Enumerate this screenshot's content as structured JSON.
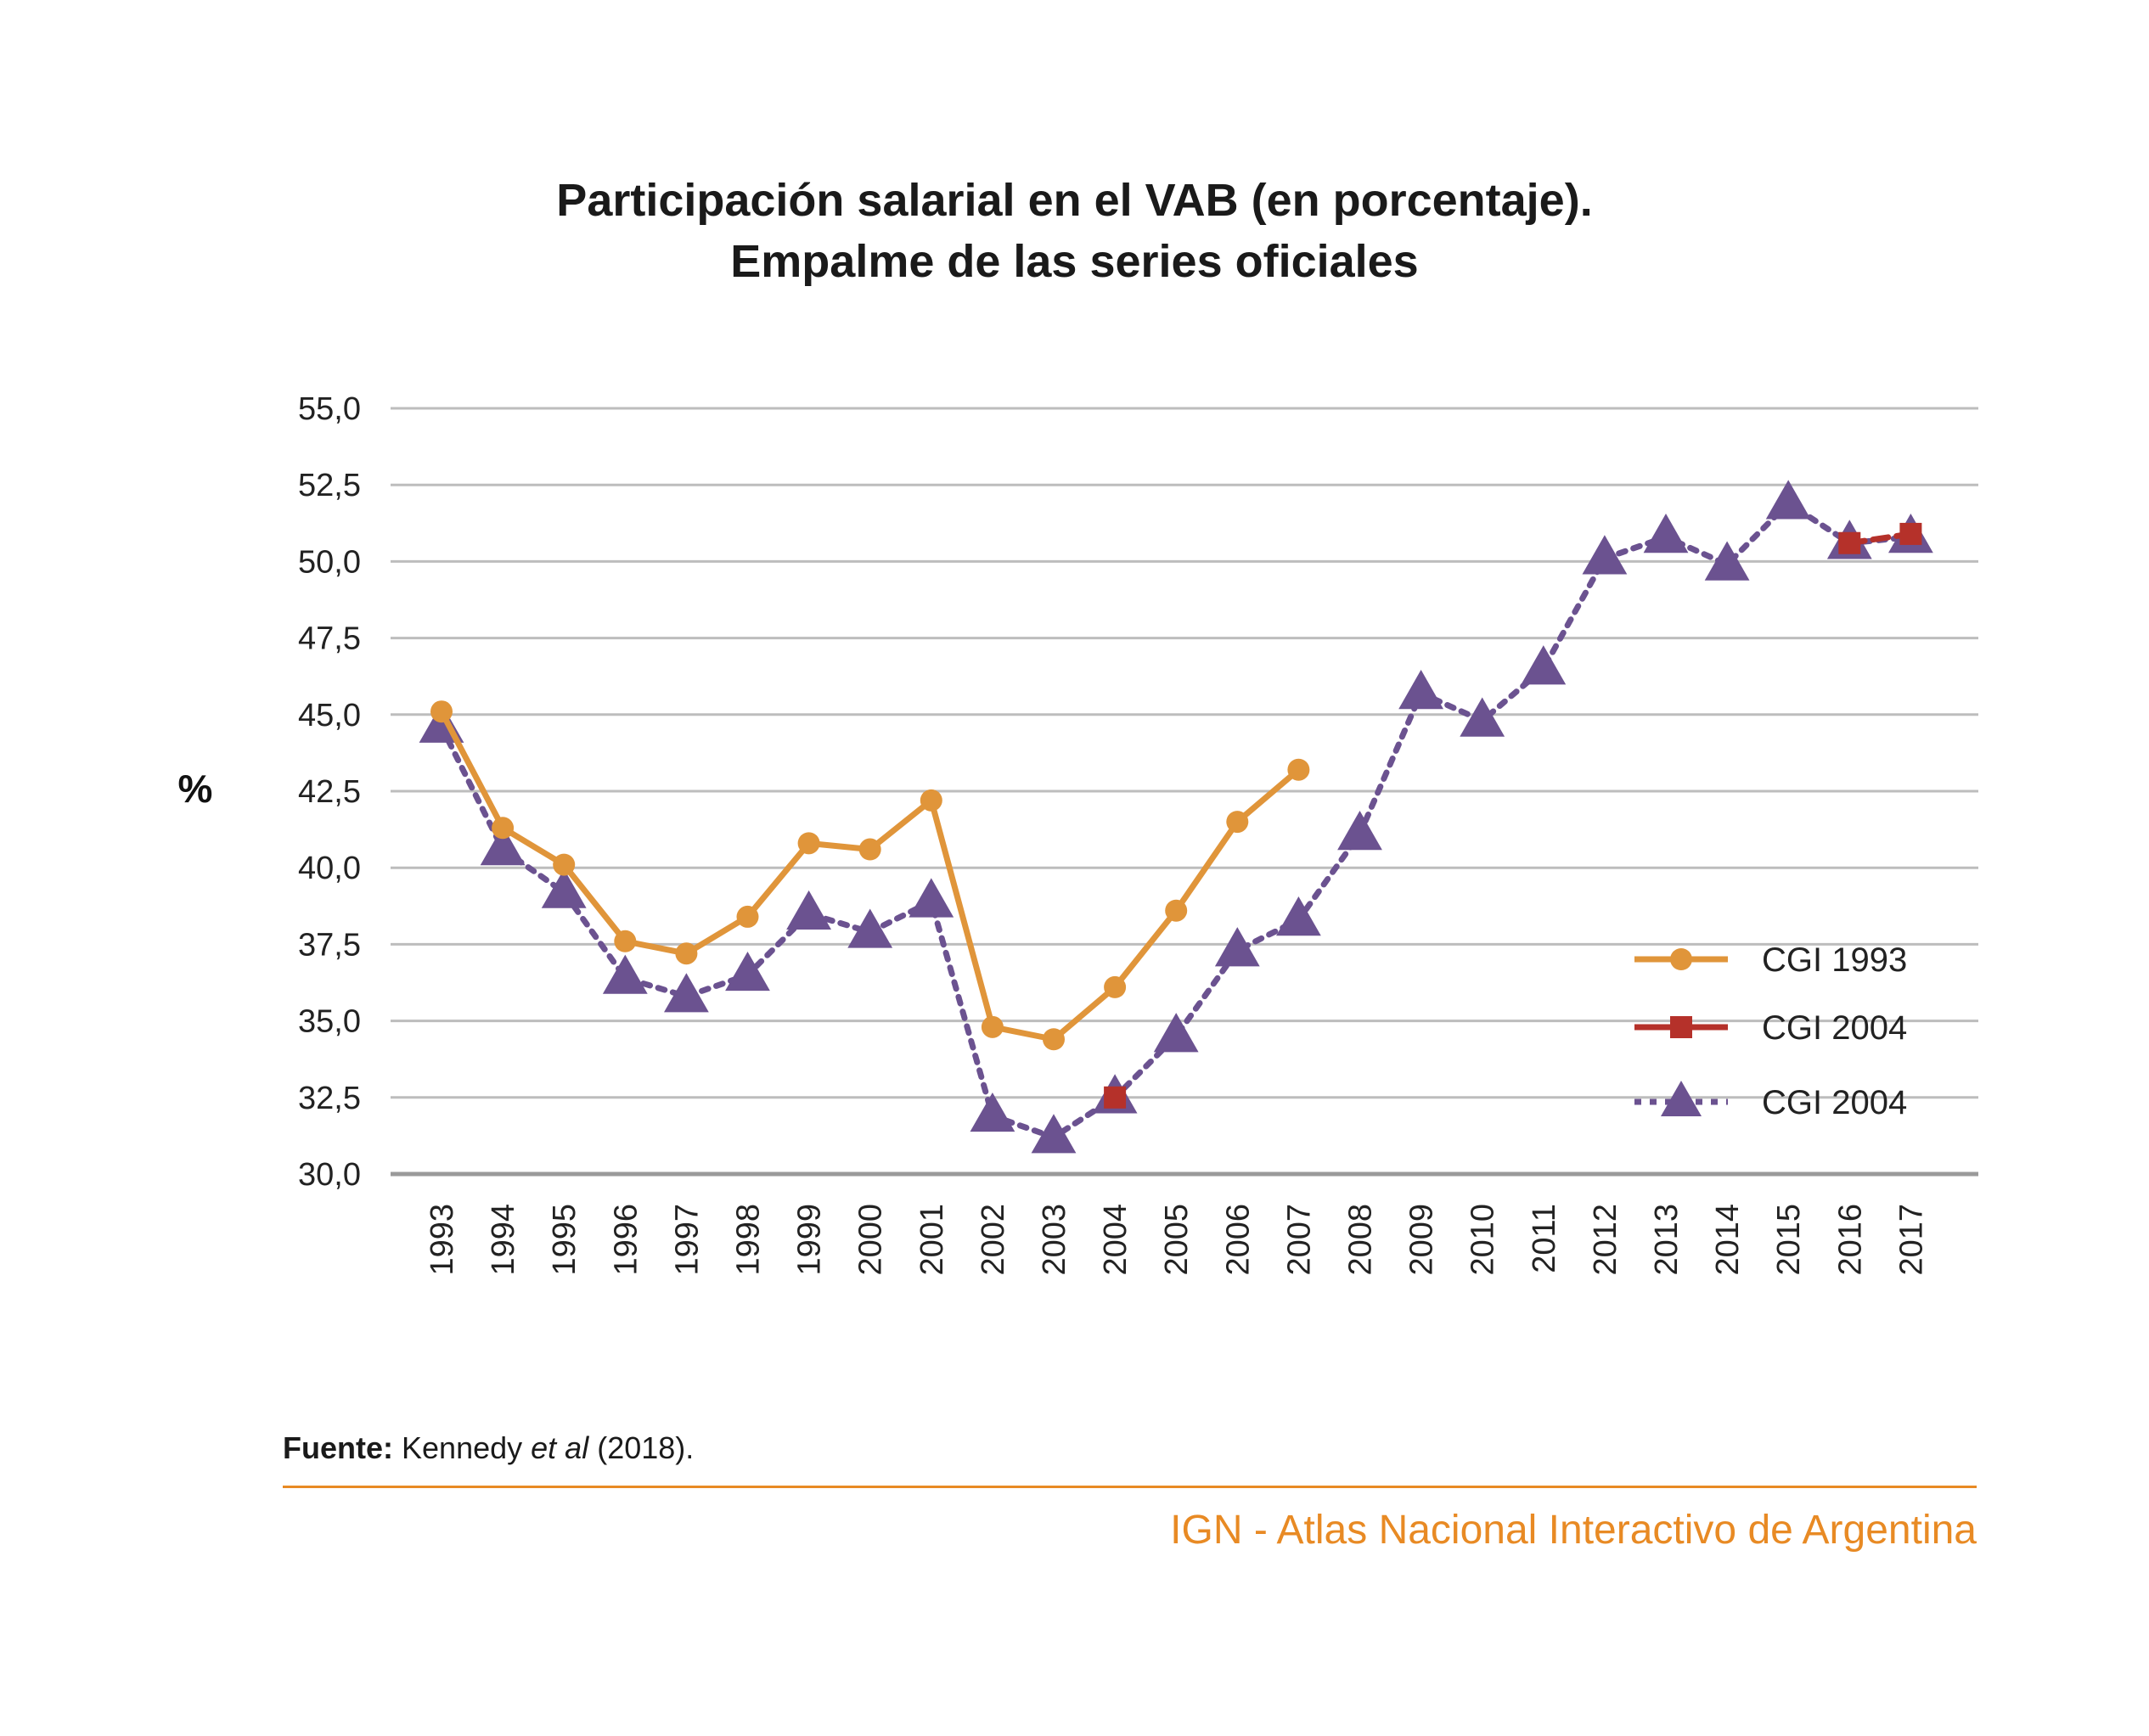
{
  "chart_data": {
    "type": "line",
    "title": "Participación salarial en el VAB (en porcentaje).",
    "subtitle": "Empalme de las series oficiales",
    "ylabel": "%",
    "xlabel": "",
    "ylim": [
      30,
      55
    ],
    "yticks": [
      "30,0",
      "32,5",
      "35,0",
      "37,5",
      "40,0",
      "42,5",
      "45,0",
      "47,5",
      "50,0",
      "52,5",
      "55,0"
    ],
    "categories": [
      "1993",
      "1994",
      "1995",
      "1996",
      "1997",
      "1998",
      "1999",
      "2000",
      "2001",
      "2002",
      "2003",
      "2004",
      "2005",
      "2006",
      "2007",
      "2008",
      "2009",
      "2010",
      "2011",
      "2012",
      "2013",
      "2014",
      "2015",
      "2016",
      "2017"
    ],
    "grid": true,
    "legend_position": "right",
    "series": [
      {
        "name": "CGI 1993",
        "color": "#e0953a",
        "marker": "circle",
        "dash": "solid",
        "values": [
          45.1,
          41.3,
          40.1,
          37.6,
          37.2,
          38.4,
          40.8,
          40.6,
          42.2,
          34.8,
          34.4,
          36.1,
          38.6,
          41.5,
          43.2,
          null,
          null,
          null,
          null,
          null,
          null,
          null,
          null,
          null,
          null
        ]
      },
      {
        "name": "CGI 2004",
        "color": "#b5312a",
        "marker": "square",
        "dash": "dashed",
        "values": [
          null,
          null,
          null,
          null,
          null,
          null,
          null,
          null,
          null,
          null,
          null,
          32.5,
          null,
          null,
          null,
          null,
          null,
          null,
          null,
          null,
          null,
          null,
          null,
          50.6,
          50.9
        ]
      },
      {
        "name": "CGI 2004",
        "color": "#6b5290",
        "marker": "triangle",
        "dash": "dotted",
        "values": [
          44.6,
          40.6,
          39.2,
          36.4,
          35.8,
          36.5,
          38.5,
          37.9,
          38.9,
          31.9,
          31.2,
          32.5,
          34.5,
          37.3,
          38.3,
          41.1,
          45.7,
          44.8,
          46.5,
          50.1,
          50.8,
          49.9,
          51.9,
          50.6,
          50.8
        ]
      }
    ]
  },
  "footer": {
    "source_label": "Fuente:",
    "source_author": "Kennedy",
    "source_etal": "et al",
    "source_year": "(2018).",
    "credit": "IGN - Atlas Nacional Interactivo de Argentina"
  }
}
